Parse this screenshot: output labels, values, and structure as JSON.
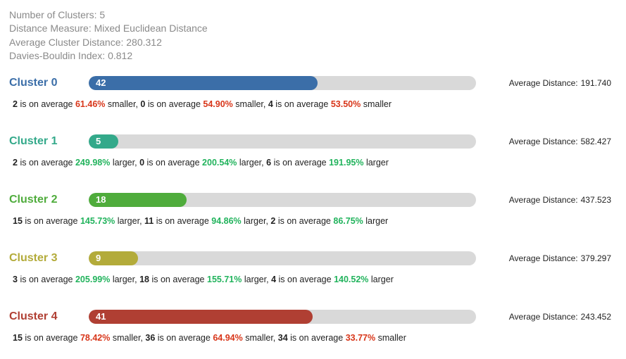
{
  "summary": {
    "num_clusters": "Number of Clusters: 5",
    "distance_measure": "Distance Measure: Mixed Euclidean Distance",
    "avg_cluster_distance": "Average Cluster Distance: 280.312",
    "davies_bouldin": "Davies-Bouldin Index: 0.812"
  },
  "labels": {
    "avg_distance": "Average Distance:",
    "is_on_average": "is on average"
  },
  "colors": {
    "smaller": "#d8361a",
    "larger": "#21b35c",
    "track": "#d9d9d9"
  },
  "bar_max_count": 71,
  "clusters": [
    {
      "name": "Cluster 0",
      "color": "#3b6ea8",
      "count": 42,
      "avg_distance": "191.740",
      "comparisons": [
        {
          "cluster": "2",
          "pct": "61.46%",
          "dir": "smaller"
        },
        {
          "cluster": "0",
          "pct": "54.90%",
          "dir": "smaller"
        },
        {
          "cluster": "4",
          "pct": "53.50%",
          "dir": "smaller"
        }
      ]
    },
    {
      "name": "Cluster 1",
      "color": "#33a98a",
      "count": 5,
      "avg_distance": "582.427",
      "comparisons": [
        {
          "cluster": "2",
          "pct": "249.98%",
          "dir": "larger"
        },
        {
          "cluster": "0",
          "pct": "200.54%",
          "dir": "larger"
        },
        {
          "cluster": "6",
          "pct": "191.95%",
          "dir": "larger"
        }
      ]
    },
    {
      "name": "Cluster 2",
      "color": "#4fac3c",
      "count": 18,
      "avg_distance": "437.523",
      "comparisons": [
        {
          "cluster": "15",
          "pct": "145.73%",
          "dir": "larger"
        },
        {
          "cluster": "11",
          "pct": "94.86%",
          "dir": "larger"
        },
        {
          "cluster": "2",
          "pct": "86.75%",
          "dir": "larger"
        }
      ]
    },
    {
      "name": "Cluster 3",
      "color": "#b3ab3a",
      "count": 9,
      "avg_distance": "379.297",
      "comparisons": [
        {
          "cluster": "3",
          "pct": "205.99%",
          "dir": "larger"
        },
        {
          "cluster": "18",
          "pct": "155.71%",
          "dir": "larger"
        },
        {
          "cluster": "4",
          "pct": "140.52%",
          "dir": "larger"
        }
      ]
    },
    {
      "name": "Cluster 4",
      "color": "#b03f33",
      "count": 41,
      "avg_distance": "243.452",
      "comparisons": [
        {
          "cluster": "15",
          "pct": "78.42%",
          "dir": "smaller"
        },
        {
          "cluster": "36",
          "pct": "64.94%",
          "dir": "smaller"
        },
        {
          "cluster": "34",
          "pct": "33.77%",
          "dir": "smaller"
        }
      ]
    }
  ]
}
